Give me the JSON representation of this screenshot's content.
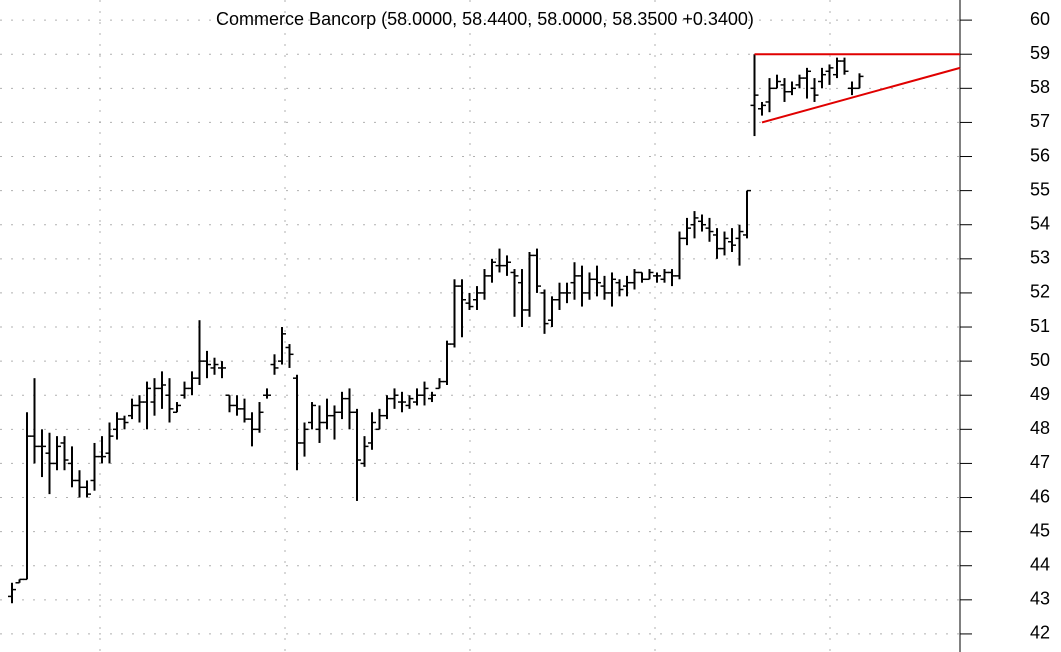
{
  "chart_data": {
    "type": "ohlc",
    "title": "Commerce Bancorp (58.0000, 58.4400, 58.0000, 58.3500 +0.3400)",
    "color": "#000000",
    "open": [
      43.1,
      43.5,
      43.6,
      47.8,
      47.5,
      47.3,
      47.0,
      47.6,
      47.0,
      46.5,
      46.3,
      46.5,
      47.2,
      47.3,
      48.0,
      48.3,
      48.4,
      48.7,
      48.8,
      48.8,
      49.2,
      49.0,
      48.5,
      49.0,
      49.2,
      49.5,
      50.0,
      49.8,
      49.8,
      49.0,
      48.7,
      48.6,
      48.3,
      48.0,
      49.0,
      49.9,
      50.0,
      50.4,
      49.5,
      47.6,
      48.2,
      48.0,
      48.2,
      48.4,
      48.5,
      48.9,
      48.5,
      47.0,
      47.6,
      48.0,
      48.4,
      48.9,
      48.8,
      48.7,
      48.8,
      49.0,
      48.9,
      49.2,
      49.4,
      50.5,
      52.2,
      51.7,
      51.8,
      52.0,
      52.5,
      52.8,
      52.8,
      52.6,
      52.3,
      51.5,
      53.1,
      52.0,
      51.2,
      51.8,
      52.0,
      52.3,
      52.5,
      52.0,
      52.4,
      52.2,
      52.0,
      52.3,
      52.2,
      52.3,
      52.6,
      52.4,
      52.5,
      52.4,
      52.6,
      52.5,
      53.6,
      54.0,
      54.1,
      53.9,
      53.7,
      53.3,
      53.5,
      53.6,
      53.7,
      57.5,
      57.4,
      57.6,
      58.0,
      58.1,
      57.9,
      58.1,
      58.3,
      58.0,
      58.2,
      58.5,
      58.4,
      58.8,
      58.0,
      58.0
    ],
    "high": [
      43.5,
      43.6,
      48.5,
      49.5,
      48.0,
      47.9,
      47.8,
      47.8,
      47.5,
      46.8,
      46.5,
      47.6,
      47.8,
      48.2,
      48.5,
      48.4,
      48.9,
      49.0,
      49.4,
      49.5,
      49.7,
      49.5,
      48.8,
      49.4,
      49.7,
      51.2,
      50.3,
      50.1,
      50.0,
      49.0,
      49.0,
      48.9,
      48.5,
      48.8,
      49.2,
      50.2,
      51.0,
      50.5,
      49.6,
      48.2,
      48.8,
      48.7,
      48.9,
      48.7,
      49.1,
      49.2,
      48.6,
      47.8,
      48.5,
      48.6,
      49.0,
      49.2,
      49.1,
      49.0,
      49.2,
      49.4,
      49.1,
      49.5,
      50.6,
      52.4,
      52.4,
      52.0,
      52.2,
      52.7,
      53.0,
      53.3,
      53.1,
      52.7,
      52.7,
      53.2,
      53.3,
      52.1,
      51.9,
      52.3,
      52.3,
      52.9,
      52.8,
      52.6,
      52.8,
      52.5,
      52.6,
      52.4,
      52.5,
      52.7,
      52.6,
      52.7,
      52.6,
      52.7,
      52.7,
      53.8,
      54.2,
      54.4,
      54.3,
      54.2,
      53.9,
      53.8,
      53.9,
      54.0,
      55.0,
      59.0,
      57.6,
      58.3,
      58.4,
      58.3,
      58.2,
      58.4,
      58.6,
      58.3,
      58.6,
      58.7,
      58.9,
      58.9,
      58.2,
      58.44
    ],
    "low": [
      42.9,
      43.5,
      43.6,
      47.0,
      46.6,
      46.1,
      46.8,
      46.8,
      46.3,
      46.0,
      46.0,
      46.2,
      47.0,
      47.0,
      47.7,
      48.0,
      48.3,
      48.2,
      48.0,
      48.4,
      48.6,
      48.2,
      48.5,
      48.9,
      49.0,
      49.3,
      49.5,
      49.6,
      49.5,
      48.5,
      48.4,
      48.2,
      47.5,
      47.9,
      48.9,
      49.6,
      49.9,
      49.8,
      46.8,
      47.2,
      48.0,
      47.6,
      48.0,
      47.7,
      48.3,
      48.0,
      45.9,
      46.9,
      47.4,
      48.0,
      48.3,
      48.6,
      48.5,
      48.6,
      48.7,
      48.7,
      48.8,
      49.2,
      49.3,
      50.4,
      50.7,
      51.5,
      51.5,
      51.8,
      52.3,
      52.6,
      52.5,
      51.3,
      51.0,
      51.3,
      52.0,
      50.8,
      51.0,
      51.5,
      51.7,
      51.8,
      51.6,
      51.8,
      51.9,
      51.8,
      51.6,
      51.9,
      51.9,
      52.1,
      52.3,
      52.4,
      52.3,
      52.3,
      52.2,
      52.4,
      53.4,
      53.6,
      53.8,
      53.5,
      53.0,
      53.1,
      53.2,
      52.8,
      53.6,
      56.6,
      57.2,
      57.3,
      58.0,
      57.6,
      57.8,
      58.0,
      57.7,
      57.6,
      58.0,
      58.1,
      58.3,
      58.4,
      57.8,
      58.0
    ],
    "close": [
      43.3,
      43.6,
      47.8,
      47.5,
      47.5,
      47.0,
      47.5,
      47.1,
      46.5,
      46.3,
      46.1,
      47.2,
      47.2,
      47.8,
      48.3,
      48.2,
      48.7,
      48.8,
      49.2,
      49.2,
      49.3,
      48.6,
      48.7,
      49.2,
      49.5,
      50.0,
      49.9,
      49.9,
      49.8,
      48.7,
      48.6,
      48.3,
      48.0,
      48.5,
      49.0,
      49.8,
      50.8,
      50.2,
      47.6,
      48.0,
      48.7,
      48.2,
      48.4,
      48.5,
      48.9,
      48.5,
      47.1,
      47.5,
      48.2,
      48.4,
      48.9,
      49.0,
      48.8,
      48.9,
      49.0,
      49.2,
      49.0,
      49.4,
      50.5,
      52.2,
      51.8,
      51.6,
      52.0,
      52.5,
      52.9,
      52.8,
      52.9,
      52.5,
      51.5,
      53.1,
      52.2,
      51.1,
      51.8,
      52.0,
      52.0,
      52.5,
      52.0,
      52.4,
      52.3,
      52.0,
      52.4,
      52.1,
      52.3,
      52.6,
      52.4,
      52.6,
      52.5,
      52.6,
      52.5,
      53.6,
      53.9,
      54.2,
      54.0,
      53.8,
      53.3,
      53.6,
      53.4,
      53.8,
      55.0,
      57.8,
      57.5,
      58.0,
      58.2,
      57.9,
      58.0,
      58.3,
      58.5,
      57.8,
      58.4,
      58.6,
      58.8,
      58.5,
      58.0,
      58.35
    ],
    "xlim": [
      -1.6,
      126.4
    ],
    "ylim": [
      41.47,
      60.59
    ],
    "yticks": [
      42,
      43,
      44,
      45,
      46,
      47,
      48,
      49,
      50,
      51,
      52,
      53,
      54,
      55,
      56,
      57,
      58,
      59,
      60
    ],
    "grid": true,
    "trendlines": [
      {
        "color": "#e00000",
        "from": [
          99,
          59
        ],
        "to": [
          126.4,
          59
        ]
      },
      {
        "color": "#e00000",
        "from": [
          100,
          57.0
        ],
        "to": [
          126.4,
          58.6
        ]
      }
    ]
  }
}
